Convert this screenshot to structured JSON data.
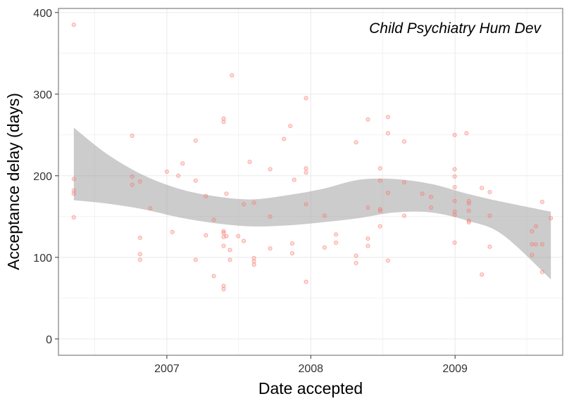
{
  "chart_data": {
    "type": "scatter",
    "title": "",
    "annotation": "Child Psychiatry Hum Dev",
    "xlabel": "Date accepted",
    "ylabel": "Acceptance delay (days)",
    "x_scale": "date",
    "xlim": [
      "2006-04-01",
      "2009-10-01"
    ],
    "ylim": [
      -20,
      405
    ],
    "x_ticks": [
      {
        "value": "2007-01-01",
        "label": "2007"
      },
      {
        "value": "2008-01-01",
        "label": "2008"
      },
      {
        "value": "2009-01-01",
        "label": "2009"
      }
    ],
    "y_ticks": [
      {
        "value": 0,
        "label": "0"
      },
      {
        "value": 100,
        "label": "100"
      },
      {
        "value": 200,
        "label": "200"
      },
      {
        "value": 300,
        "label": "300"
      },
      {
        "value": 400,
        "label": "400"
      }
    ],
    "grid": true,
    "colors": {
      "points": "#f8766d",
      "band": "#999999",
      "grid": "#ebebeb",
      "border": "#7f7f7f"
    },
    "series": [
      {
        "type": "scatter",
        "points": [
          {
            "x": "2006-05-10",
            "y": 385
          },
          {
            "x": "2006-05-10",
            "y": 196
          },
          {
            "x": "2006-05-10",
            "y": 182
          },
          {
            "x": "2006-05-10",
            "y": 178
          },
          {
            "x": "2006-05-10",
            "y": 149
          },
          {
            "x": "2006-10-05",
            "y": 249
          },
          {
            "x": "2006-10-05",
            "y": 199
          },
          {
            "x": "2006-10-05",
            "y": 189
          },
          {
            "x": "2006-10-25",
            "y": 193
          },
          {
            "x": "2006-10-25",
            "y": 124
          },
          {
            "x": "2006-10-25",
            "y": 104
          },
          {
            "x": "2006-10-25",
            "y": 97
          },
          {
            "x": "2006-11-20",
            "y": 160
          },
          {
            "x": "2007-01-01",
            "y": 205
          },
          {
            "x": "2007-01-15",
            "y": 131
          },
          {
            "x": "2007-01-30",
            "y": 200
          },
          {
            "x": "2007-02-10",
            "y": 215
          },
          {
            "x": "2007-03-15",
            "y": 243
          },
          {
            "x": "2007-03-15",
            "y": 194
          },
          {
            "x": "2007-03-15",
            "y": 97
          },
          {
            "x": "2007-04-10",
            "y": 175
          },
          {
            "x": "2007-04-10",
            "y": 127
          },
          {
            "x": "2007-04-30",
            "y": 146
          },
          {
            "x": "2007-04-30",
            "y": 77
          },
          {
            "x": "2007-05-25",
            "y": 270
          },
          {
            "x": "2007-05-25",
            "y": 266
          },
          {
            "x": "2007-05-25",
            "y": 132
          },
          {
            "x": "2007-05-25",
            "y": 130
          },
          {
            "x": "2007-05-25",
            "y": 125
          },
          {
            "x": "2007-05-25",
            "y": 114
          },
          {
            "x": "2007-05-25",
            "y": 65
          },
          {
            "x": "2007-05-25",
            "y": 61
          },
          {
            "x": "2007-06-01",
            "y": 178
          },
          {
            "x": "2007-06-01",
            "y": 126
          },
          {
            "x": "2007-06-10",
            "y": 109
          },
          {
            "x": "2007-06-10",
            "y": 97
          },
          {
            "x": "2007-06-15",
            "y": 323
          },
          {
            "x": "2007-07-01",
            "y": 126
          },
          {
            "x": "2007-07-15",
            "y": 165
          },
          {
            "x": "2007-07-15",
            "y": 120
          },
          {
            "x": "2007-07-30",
            "y": 217
          },
          {
            "x": "2007-08-10",
            "y": 167
          },
          {
            "x": "2007-08-10",
            "y": 99
          },
          {
            "x": "2007-08-10",
            "y": 95
          },
          {
            "x": "2007-08-10",
            "y": 91
          },
          {
            "x": "2007-09-20",
            "y": 208
          },
          {
            "x": "2007-09-20",
            "y": 150
          },
          {
            "x": "2007-09-20",
            "y": 111
          },
          {
            "x": "2007-10-25",
            "y": 245
          },
          {
            "x": "2007-11-10",
            "y": 261
          },
          {
            "x": "2007-11-15",
            "y": 117
          },
          {
            "x": "2007-11-15",
            "y": 105
          },
          {
            "x": "2007-11-20",
            "y": 195
          },
          {
            "x": "2007-12-20",
            "y": 295
          },
          {
            "x": "2007-12-20",
            "y": 209
          },
          {
            "x": "2007-12-20",
            "y": 204
          },
          {
            "x": "2007-12-20",
            "y": 165
          },
          {
            "x": "2007-12-20",
            "y": 70
          },
          {
            "x": "2008-02-05",
            "y": 151
          },
          {
            "x": "2008-02-05",
            "y": 112
          },
          {
            "x": "2008-03-05",
            "y": 128
          },
          {
            "x": "2008-03-05",
            "y": 118
          },
          {
            "x": "2008-04-25",
            "y": 241
          },
          {
            "x": "2008-04-25",
            "y": 102
          },
          {
            "x": "2008-04-25",
            "y": 93
          },
          {
            "x": "2008-05-25",
            "y": 269
          },
          {
            "x": "2008-05-25",
            "y": 161
          },
          {
            "x": "2008-05-25",
            "y": 123
          },
          {
            "x": "2008-05-25",
            "y": 114
          },
          {
            "x": "2008-06-25",
            "y": 209
          },
          {
            "x": "2008-06-25",
            "y": 194
          },
          {
            "x": "2008-06-25",
            "y": 159
          },
          {
            "x": "2008-06-25",
            "y": 157
          },
          {
            "x": "2008-06-25",
            "y": 138
          },
          {
            "x": "2008-07-15",
            "y": 272
          },
          {
            "x": "2008-07-15",
            "y": 252
          },
          {
            "x": "2008-07-15",
            "y": 179
          },
          {
            "x": "2008-07-15",
            "y": 96
          },
          {
            "x": "2008-08-25",
            "y": 242
          },
          {
            "x": "2008-08-25",
            "y": 192
          },
          {
            "x": "2008-08-25",
            "y": 151
          },
          {
            "x": "2008-10-10",
            "y": 178
          },
          {
            "x": "2008-11-01",
            "y": 174
          },
          {
            "x": "2008-11-01",
            "y": 161
          },
          {
            "x": "2008-12-31",
            "y": 250
          },
          {
            "x": "2008-12-31",
            "y": 208
          },
          {
            "x": "2008-12-31",
            "y": 199
          },
          {
            "x": "2008-12-31",
            "y": 186
          },
          {
            "x": "2008-12-31",
            "y": 169
          },
          {
            "x": "2008-12-31",
            "y": 156
          },
          {
            "x": "2008-12-31",
            "y": 152
          },
          {
            "x": "2008-12-31",
            "y": 118
          },
          {
            "x": "2009-01-30",
            "y": 252
          },
          {
            "x": "2009-02-05",
            "y": 169
          },
          {
            "x": "2009-02-05",
            "y": 166
          },
          {
            "x": "2009-02-05",
            "y": 157
          },
          {
            "x": "2009-02-05",
            "y": 145
          },
          {
            "x": "2009-02-05",
            "y": 143
          },
          {
            "x": "2009-03-10",
            "y": 185
          },
          {
            "x": "2009-03-10",
            "y": 79
          },
          {
            "x": "2009-03-30",
            "y": 180
          },
          {
            "x": "2009-03-30",
            "y": 151
          },
          {
            "x": "2009-03-30",
            "y": 113
          },
          {
            "x": "2009-07-15",
            "y": 132
          },
          {
            "x": "2009-07-15",
            "y": 116
          },
          {
            "x": "2009-07-15",
            "y": 103
          },
          {
            "x": "2009-07-25",
            "y": 138
          },
          {
            "x": "2009-07-25",
            "y": 116
          },
          {
            "x": "2009-08-10",
            "y": 168
          },
          {
            "x": "2009-08-10",
            "y": 116
          },
          {
            "x": "2009-08-10",
            "y": 82
          },
          {
            "x": "2009-09-01",
            "y": 148
          }
        ]
      },
      {
        "type": "area",
        "band": [
          {
            "x": "2006-05-10",
            "upper": 259,
            "lower": 170
          },
          {
            "x": "2006-08-01",
            "upper": 227,
            "lower": 166
          },
          {
            "x": "2006-11-01",
            "upper": 201,
            "lower": 159
          },
          {
            "x": "2007-02-01",
            "upper": 184,
            "lower": 149
          },
          {
            "x": "2007-05-01",
            "upper": 175,
            "lower": 142
          },
          {
            "x": "2007-08-01",
            "upper": 171,
            "lower": 138
          },
          {
            "x": "2007-11-01",
            "upper": 176,
            "lower": 139
          },
          {
            "x": "2008-02-01",
            "upper": 184,
            "lower": 143
          },
          {
            "x": "2008-05-01",
            "upper": 195,
            "lower": 148
          },
          {
            "x": "2008-08-01",
            "upper": 196,
            "lower": 155
          },
          {
            "x": "2008-11-01",
            "upper": 190,
            "lower": 155
          },
          {
            "x": "2009-02-01",
            "upper": 178,
            "lower": 145
          },
          {
            "x": "2009-05-01",
            "upper": 168,
            "lower": 128
          },
          {
            "x": "2009-09-01",
            "upper": 156,
            "lower": 73
          }
        ]
      }
    ]
  }
}
